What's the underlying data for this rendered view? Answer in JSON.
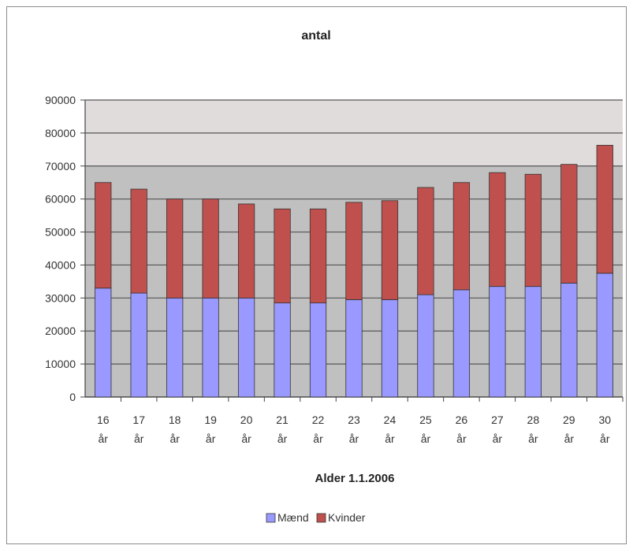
{
  "chart_data": {
    "type": "bar",
    "stacked": true,
    "title": "antal",
    "xlabel": "Alder 1.1.2006",
    "ylabel": "",
    "ylim": [
      0,
      90000
    ],
    "yticks": [
      0,
      10000,
      20000,
      30000,
      40000,
      50000,
      60000,
      70000,
      80000,
      90000
    ],
    "categories": [
      [
        "16",
        "år"
      ],
      [
        "17",
        "år"
      ],
      [
        "18",
        "år"
      ],
      [
        "19",
        "år"
      ],
      [
        "20",
        "år"
      ],
      [
        "21",
        "år"
      ],
      [
        "22",
        "år"
      ],
      [
        "23",
        "år"
      ],
      [
        "24",
        "år"
      ],
      [
        "25",
        "år"
      ],
      [
        "26",
        "år"
      ],
      [
        "27",
        "år"
      ],
      [
        "28",
        "år"
      ],
      [
        "29",
        "år"
      ],
      [
        "30",
        "år"
      ]
    ],
    "series": [
      {
        "name": "Mænd",
        "color": "#9999ff",
        "values": [
          33000,
          31500,
          30000,
          30000,
          30000,
          28500,
          28500,
          29500,
          29500,
          31000,
          32500,
          33500,
          33500,
          34500,
          37500
        ]
      },
      {
        "name": "Kvinder",
        "color": "#c0504d",
        "values": [
          32000,
          31500,
          30000,
          30000,
          28500,
          28500,
          28500,
          29500,
          30000,
          32500,
          32500,
          34500,
          34000,
          36000,
          38800
        ]
      }
    ],
    "grid": true,
    "legend": "bottom-center"
  }
}
